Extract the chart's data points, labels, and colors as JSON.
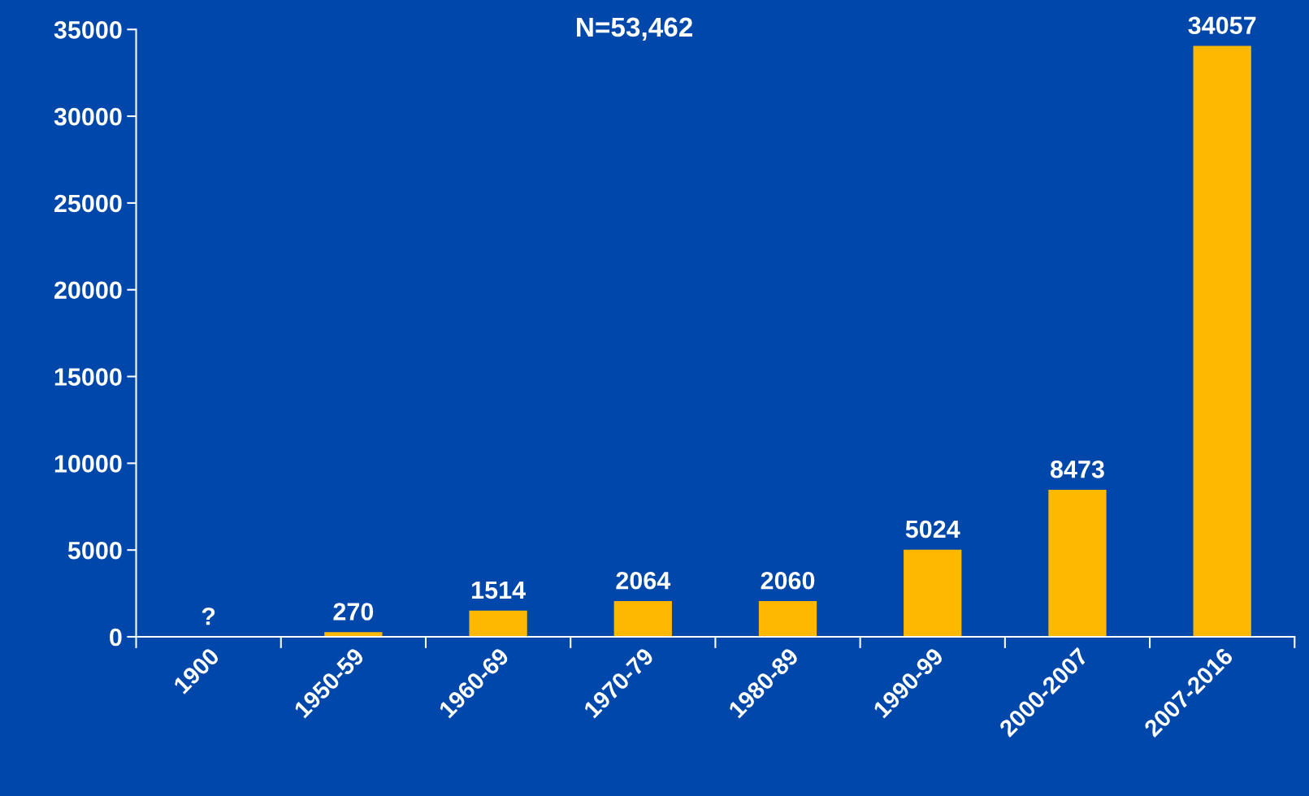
{
  "chart_data": {
    "type": "bar",
    "title": "N=53,462",
    "categories": [
      "1900",
      "1950-59",
      "1960-69",
      "1970-79",
      "1980-89",
      "1990-99",
      "2000-2007",
      "2007-2016"
    ],
    "values": [
      null,
      270,
      1514,
      2064,
      2060,
      5024,
      8473,
      34057
    ],
    "value_labels": [
      "?",
      "270",
      "1514",
      "2064",
      "2060",
      "5024",
      "8473",
      "34057"
    ],
    "color": "#ffb800",
    "ylim": [
      0,
      35000
    ],
    "yticks": [
      0,
      5000,
      10000,
      15000,
      20000,
      25000,
      30000,
      35000
    ],
    "grid": false
  }
}
